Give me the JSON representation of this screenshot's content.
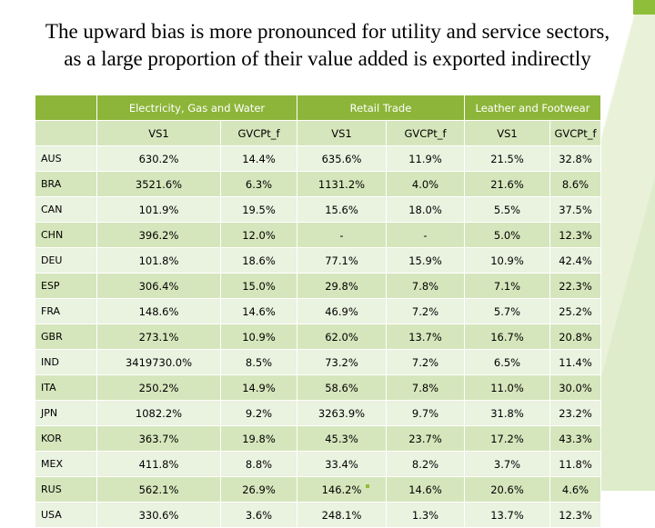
{
  "title": {
    "line1": "The upward bias is more pronounced for utility and service sectors,",
    "line2": "as a large proportion of their value added is exported indirectly"
  },
  "colors": {
    "header": "#8db53a",
    "odd_row": "#d6e6bc",
    "even_row": "#eaf2e0"
  },
  "table": {
    "groups": [
      "Electricity, Gas and Water",
      "Retail Trade",
      "Leather and Footwear"
    ],
    "subheaders": [
      "VS1",
      "GVCPt_f",
      "VS1",
      "GVCPt_f",
      "VS1",
      "GVCPt_f"
    ],
    "rows": [
      {
        "country": "AUS",
        "values": [
          "630.2%",
          "14.4%",
          "635.6%",
          "11.9%",
          "21.5%",
          "32.8%"
        ]
      },
      {
        "country": "BRA",
        "values": [
          "3521.6%",
          "6.3%",
          "1131.2%",
          "4.0%",
          "21.6%",
          "8.6%"
        ]
      },
      {
        "country": "CAN",
        "values": [
          "101.9%",
          "19.5%",
          "15.6%",
          "18.0%",
          "5.5%",
          "37.5%"
        ]
      },
      {
        "country": "CHN",
        "values": [
          "396.2%",
          "12.0%",
          "-",
          "-",
          "5.0%",
          "12.3%"
        ]
      },
      {
        "country": "DEU",
        "values": [
          "101.8%",
          "18.6%",
          "77.1%",
          "15.9%",
          "10.9%",
          "42.4%"
        ]
      },
      {
        "country": "ESP",
        "values": [
          "306.4%",
          "15.0%",
          "29.8%",
          "7.8%",
          "7.1%",
          "22.3%"
        ]
      },
      {
        "country": "FRA",
        "values": [
          "148.6%",
          "14.6%",
          "46.9%",
          "7.2%",
          "5.7%",
          "25.2%"
        ]
      },
      {
        "country": "GBR",
        "values": [
          "273.1%",
          "10.9%",
          "62.0%",
          "13.7%",
          "16.7%",
          "20.8%"
        ]
      },
      {
        "country": "IND",
        "values": [
          "3419730.0%",
          "8.5%",
          "73.2%",
          "7.2%",
          "6.5%",
          "11.4%"
        ]
      },
      {
        "country": "ITA",
        "values": [
          "250.2%",
          "14.9%",
          "58.6%",
          "7.8%",
          "11.0%",
          "30.0%"
        ]
      },
      {
        "country": "JPN",
        "values": [
          "1082.2%",
          "9.2%",
          "3263.9%",
          "9.7%",
          "31.8%",
          "23.2%"
        ]
      },
      {
        "country": "KOR",
        "values": [
          "363.7%",
          "19.8%",
          "45.3%",
          "23.7%",
          "17.2%",
          "43.3%"
        ]
      },
      {
        "country": "MEX",
        "values": [
          "411.8%",
          "8.8%",
          "33.4%",
          "8.2%",
          "3.7%",
          "11.8%"
        ]
      },
      {
        "country": "RUS",
        "values": [
          "562.1%",
          "26.9%",
          "146.2%",
          "14.6%",
          "20.6%",
          "4.6%"
        ]
      },
      {
        "country": "USA",
        "values": [
          "330.6%",
          "3.6%",
          "248.1%",
          "1.3%",
          "13.7%",
          "12.3%"
        ]
      }
    ]
  }
}
